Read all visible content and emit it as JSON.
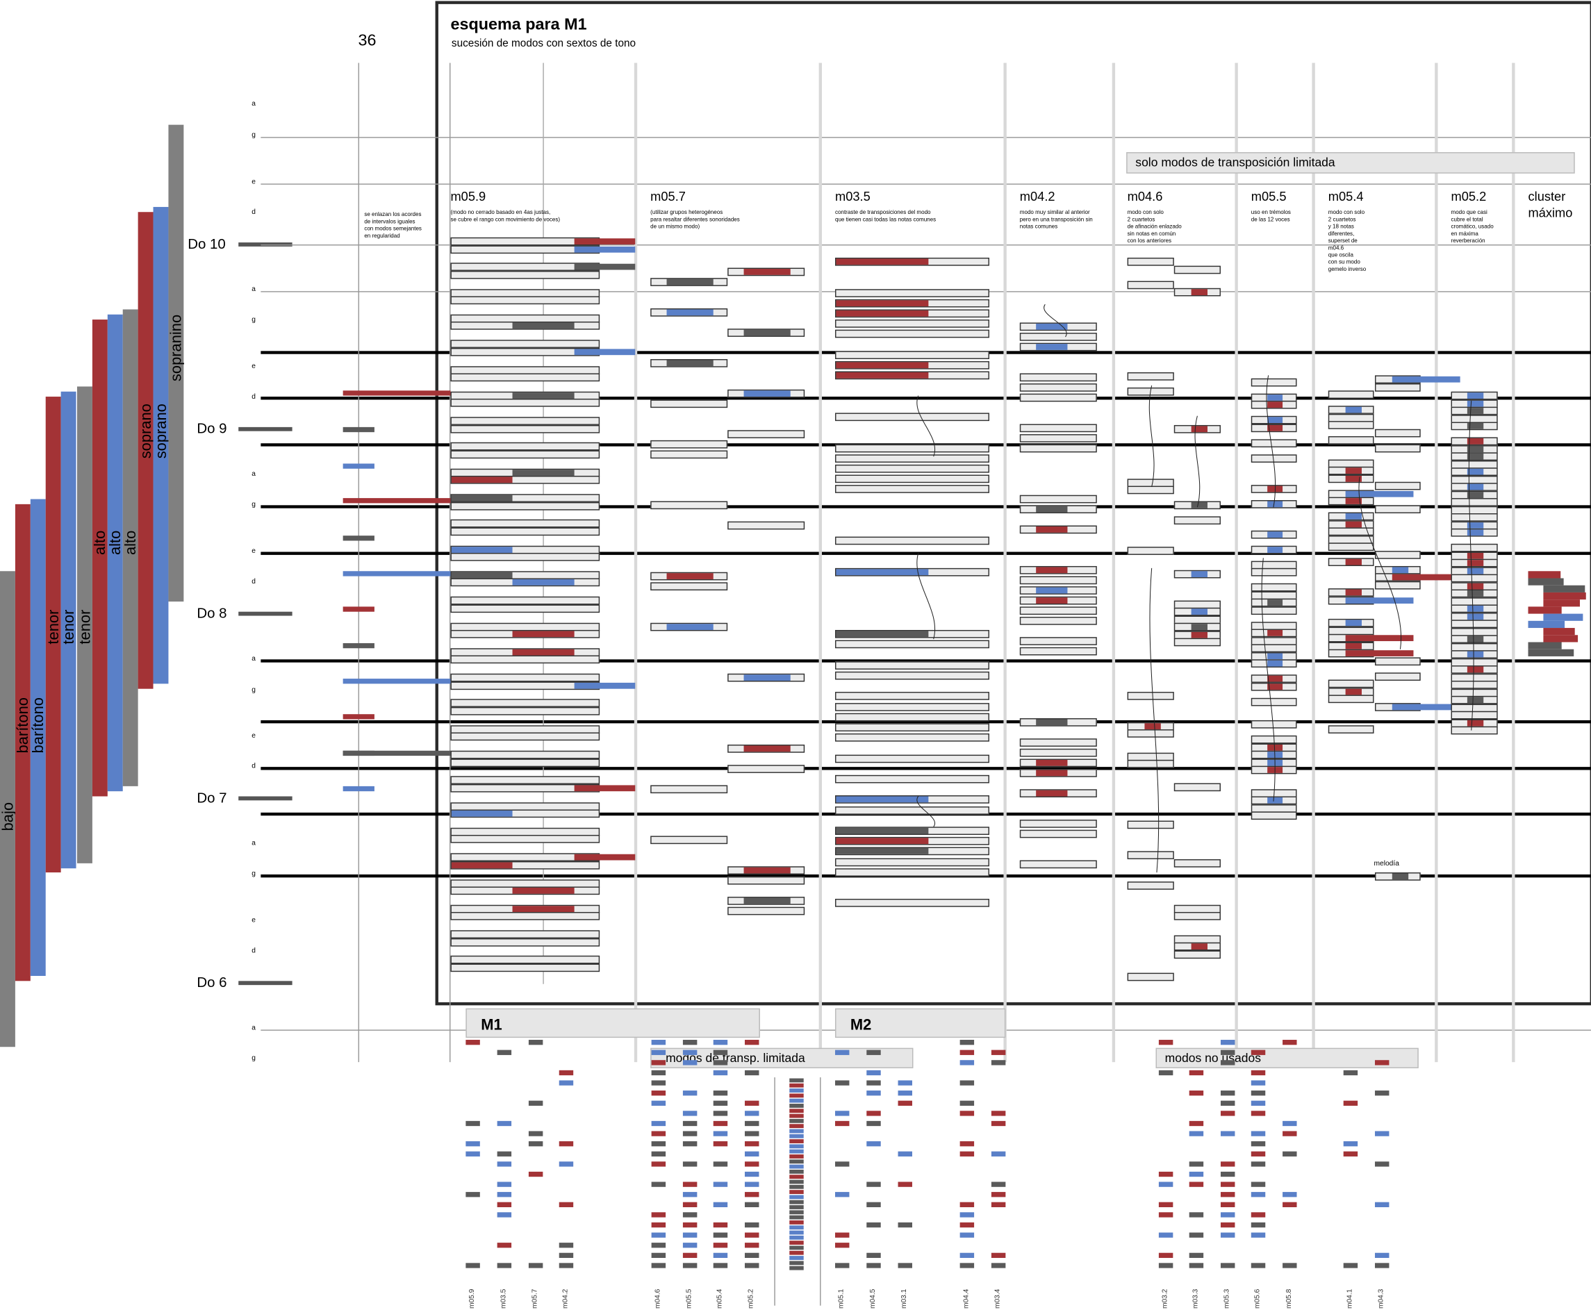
{
  "header": {
    "title": "esquema para M1",
    "subtitle": "sucesión de modos con sextos de tono",
    "number": "36"
  },
  "colors": {
    "red": "#a33336",
    "blue": "#5a80c8",
    "gray": "#5a5a5a",
    "bar_fill": "#ececec"
  },
  "voices": [
    "bajo",
    "barítono",
    "barítono",
    "tenor",
    "tenor",
    "tenor",
    "alto",
    "alto",
    "alto",
    "soprano",
    "soprano",
    "sopranino"
  ],
  "note_labels": [
    "a",
    "g",
    "e",
    "d",
    "a",
    "g",
    "e",
    "d",
    "a",
    "g",
    "e",
    "d",
    "a",
    "g",
    "e",
    "d",
    "a",
    "g",
    "e",
    "d",
    "a",
    "g"
  ],
  "do_labels": [
    "Do 10",
    "Do 9",
    "Do 8",
    "Do 7",
    "Do 6"
  ],
  "left_note": "se enlazan los acordes\nde intervalos iguales\ncon modos semejantes\nen regularidad",
  "columns": [
    {
      "name": "m05.9",
      "desc": "(modo no cerrado basado en 4as justas,\nse cubre el rango con movimiento de voces)"
    },
    {
      "name": "m05.7",
      "desc": "(utilizar grupos heterogéneos\npara resaltar diferentes sonoridades\nde un mismo modo)"
    },
    {
      "name": "m03.5",
      "desc": "contraste de  transposiciones del modo\nque tienen casi todas las notas comunes"
    },
    {
      "name": "m04.2",
      "desc": "modo muy similar al anterior\npero en una transposición sin\nnotas comunes"
    },
    {
      "name": "m04.6",
      "desc": "modo con solo\n2 cuartetos\nde afinación enlazado\nsin notas en común\ncon los anteriores"
    },
    {
      "name": "m05.5",
      "desc": "uso en trémolos\nde las 12 voces"
    },
    {
      "name": "m05.4",
      "desc": "modo con solo\n2 cuartetos\ny 18 notas\ndiferentes,\nsuperset de\nm04.6\nque oscila\ncon su modo\ngemelo inverso"
    },
    {
      "name": "m05.2",
      "desc": "modo que casi\ncubre el total\ncromático, usado\nen máxima\nreverberación"
    },
    {
      "name": "cluster\nmáximo",
      "desc": ""
    }
  ],
  "sections": {
    "limited_only": "solo modos de transposición limitada",
    "m1": "M1",
    "m2": "M2",
    "limited": "modos de transp. limitada",
    "unused": "modos no usados",
    "melody": "melodía"
  },
  "bottom_labels": [
    "m05.9",
    "m03.5",
    "m05.7",
    "m04.2",
    "m04.6",
    "m05.5",
    "m05.4",
    "m05.2",
    "m05.1",
    "m04.5",
    "m03.1",
    "m04.4",
    "m03.4",
    "m03.2",
    "m03.3",
    "m05.3",
    "m05.6",
    "m05.8",
    "m04.1",
    "m04.3"
  ]
}
